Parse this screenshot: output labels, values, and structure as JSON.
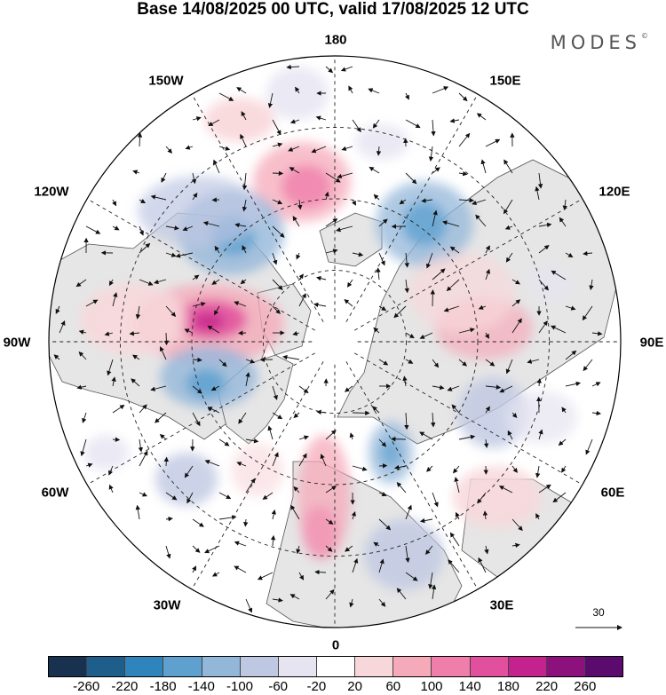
{
  "title": "Base 14/08/2025 00 UTC, valid 17/08/2025 12 UTC",
  "brand": "MODES",
  "brand_mark": "©",
  "map": {
    "projection": "north-polar-stereographic",
    "longitude_labels": {
      "top": "180",
      "bottom": "0",
      "left": "90W",
      "right": "90E",
      "upper_left_1": "150W",
      "upper_left_2": "120W",
      "lower_left_1": "60W",
      "lower_left_2": "30W",
      "upper_right_1": "150E",
      "upper_right_2": "120E",
      "lower_right_1": "60E",
      "lower_right_2": "30E"
    },
    "reference_vector": "30",
    "colors": {
      "land": "#e6e6e6",
      "ocean": "#ffffff",
      "coastline": "#555555"
    }
  },
  "colorbar": {
    "colors": [
      "#17314f",
      "#1d5e8a",
      "#2f85bb",
      "#5ea1cf",
      "#93b7d9",
      "#bfc8e2",
      "#e6e4f1",
      "#ffffff",
      "#f8d7da",
      "#f5aab9",
      "#ef7eaa",
      "#e24f9c",
      "#c4228c",
      "#8d117c",
      "#5b0a6e"
    ],
    "ticks": [
      "-260",
      "-220",
      "-180",
      "-140",
      "-100",
      "-60",
      "-20",
      "20",
      "60",
      "100",
      "140",
      "180",
      "220",
      "260"
    ]
  }
}
